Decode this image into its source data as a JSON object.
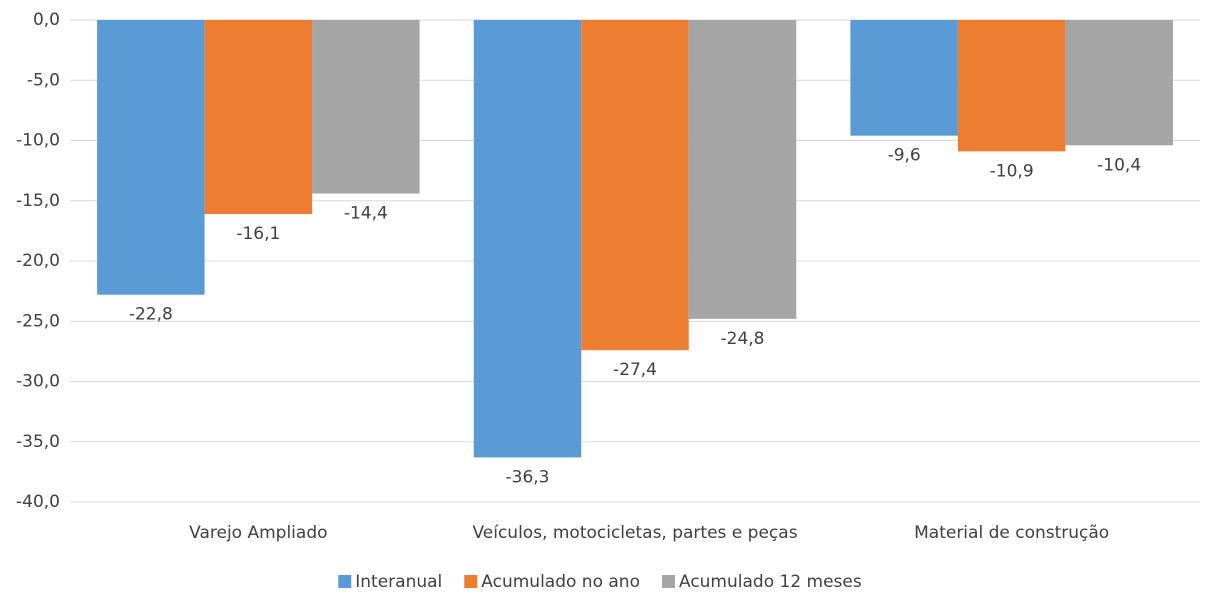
{
  "chart_data": {
    "type": "bar",
    "categories": [
      "Varejo Ampliado",
      "Veículos, motocicletas, partes e peças",
      "Material de construção"
    ],
    "series": [
      {
        "name": "Interanual",
        "color": "#5b9bd5",
        "values": [
          -22.8,
          -36.3,
          -9.6
        ],
        "value_labels": [
          "-22,8",
          "-36,3",
          "-9,6"
        ]
      },
      {
        "name": "Acumulado no ano",
        "color": "#ed7d31",
        "values": [
          -16.1,
          -27.4,
          -10.9
        ],
        "value_labels": [
          "-16,1",
          "-27,4",
          "-10,9"
        ]
      },
      {
        "name": "Acumulado 12 meses",
        "color": "#a5a5a5",
        "values": [
          -14.4,
          -24.8,
          -10.4
        ],
        "value_labels": [
          "-14,4",
          "-24,8",
          "-10,4"
        ]
      }
    ],
    "ylim": [
      -40,
      0
    ],
    "yticks": [
      {
        "value": 0,
        "label": "0,0"
      },
      {
        "value": -5,
        "label": "-5,0"
      },
      {
        "value": -10,
        "label": "-10,0"
      },
      {
        "value": -15,
        "label": "-15,0"
      },
      {
        "value": -20,
        "label": "-20,0"
      },
      {
        "value": -25,
        "label": "-25,0"
      },
      {
        "value": -30,
        "label": "-30,0"
      },
      {
        "value": -35,
        "label": "-35,0"
      },
      {
        "value": -40,
        "label": "-40,0"
      }
    ],
    "grid": true,
    "legend": "bottom"
  }
}
